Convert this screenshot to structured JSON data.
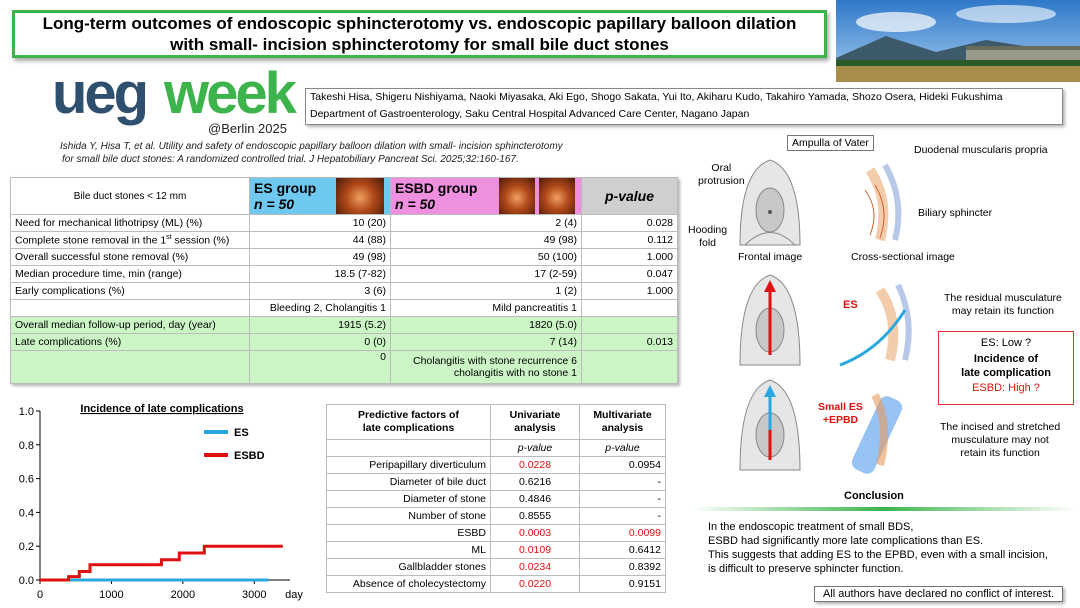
{
  "title": {
    "line1": "Long-term outcomes of endoscopic sphincterotomy vs. endoscopic papillary balloon dilation",
    "line2": "with small- incision sphincterotomy for small bile duct stones"
  },
  "logo": {
    "ueg": "ueg",
    "week": "week",
    "city": "@Berlin 2025"
  },
  "authors": {
    "names": "Takeshi Hisa, Shigeru Nishiyama, Naoki Miyasaka, Aki Ego, Shogo Sakata, Yui Ito, Akiharu Kudo, Takahiro Yamada, Shozo Osera, Hideki Fukushima",
    "affiliation": "Department of Gastroenterology, Saku Central Hospital Advanced Care Center, Nagano Japan"
  },
  "citation": {
    "line1": "Ishida Y, Hisa T, et al. Utility and safety of endoscopic papillary balloon dilation with small- incision sphincterotomy",
    "line2": "for small bile duct stones: A randomized controlled trial. J Hepatobiliary Pancreat Sci. 2025;32:160-167."
  },
  "main_table": {
    "header": {
      "label": "Bile duct stones < 12 mm",
      "es_group": "ES group",
      "es_n": "n = 50",
      "esbd_group": "ESBD group",
      "esbd_n": "n = 50",
      "p": "p-value"
    },
    "rows": [
      {
        "label": "Need for mechanical lithotripsy (ML) (%)",
        "es": "10 (20)",
        "esbd": "2 (4)",
        "p": "0.028"
      },
      {
        "label_pre": "Complete stone removal in the 1",
        "label_sup": "st",
        "label_post": " session (%)",
        "es": "44 (88)",
        "esbd": "49 (98)",
        "p": "0.112"
      },
      {
        "label": "Overall successful stone removal (%)",
        "es": "49 (98)",
        "esbd": "50 (100)",
        "p": "1.000"
      },
      {
        "label": "Median procedure time, min (range)",
        "es": "18.5 (7-82)",
        "esbd": "17 (2-59)",
        "p": "0.047"
      },
      {
        "label": "Early complications (%)",
        "es": "3 (6)",
        "esbd": "1 (2)",
        "p": "1.000"
      },
      {
        "label": "",
        "es": "Bleeding  2, Cholangitis 1",
        "esbd": "Mild pancreatitis 1",
        "p": ""
      },
      {
        "label": "Overall median follow-up period, day (year)",
        "es": "1915 (5.2)",
        "esbd": "1820 (5.0)",
        "p": ""
      },
      {
        "label": "Late complications (%)",
        "es": "0 (0)",
        "esbd": "7 (14)",
        "p": "0.013"
      },
      {
        "label": "",
        "es": "0",
        "esbd": "Cholangitis with stone recurrence 6",
        "esbd2": "cholangitis with no stone 1",
        "p": ""
      }
    ]
  },
  "chart_data": {
    "type": "line",
    "title": "Incidence of late complications",
    "xlabel": "day",
    "ylabel": "",
    "xlim": [
      0,
      3500
    ],
    "ylim": [
      0,
      1.0
    ],
    "xticks": [
      "0",
      "1000",
      "2000",
      "3000"
    ],
    "yticks": [
      "0.0",
      "0.2",
      "0.4",
      "0.6",
      "0.8",
      "1.0"
    ],
    "legend_position": "top-right",
    "series": [
      {
        "name": "ES",
        "color": "#29a8e0",
        "x": [
          0,
          3200
        ],
        "y": [
          0,
          0
        ]
      },
      {
        "name": "ESBD",
        "color": "#e01010",
        "x": [
          0,
          400,
          400,
          550,
          550,
          700,
          700,
          1700,
          1700,
          1950,
          1950,
          2300,
          2300,
          3400
        ],
        "y": [
          0,
          0,
          0.02,
          0.02,
          0.05,
          0.05,
          0.09,
          0.09,
          0.12,
          0.12,
          0.16,
          0.16,
          0.2,
          0.2
        ]
      }
    ]
  },
  "pred_table": {
    "header": {
      "factor1": "Predictive factors of",
      "factor2": "late complications",
      "uni1": "Univariate",
      "uni2": "analysis",
      "multi1": "Multivariate",
      "multi2": "analysis",
      "p_uni": "p-value",
      "p_multi": "p-value"
    },
    "rows": [
      {
        "label": "Peripapillary diverticulum",
        "uni": "0.0228",
        "uni_red": true,
        "multi": "0.0954",
        "multi_red": false
      },
      {
        "label": "Diameter of bile duct",
        "uni": "0.6216",
        "uni_red": false,
        "multi": "-",
        "multi_red": false
      },
      {
        "label": "Diameter of stone",
        "uni": "0.4846",
        "uni_red": false,
        "multi": "-",
        "multi_red": false
      },
      {
        "label": "Number of stone",
        "uni": "0.8555",
        "uni_red": false,
        "multi": "-",
        "multi_red": false
      },
      {
        "label": "ESBD",
        "uni": "0.0003",
        "uni_red": true,
        "multi": "0.0099",
        "multi_red": true
      },
      {
        "label": "ML",
        "uni": "0.0109",
        "uni_red": true,
        "multi": "0.6412",
        "multi_red": false
      },
      {
        "label": "Gallbladder stones",
        "uni": "0.0234",
        "uni_red": true,
        "multi": "0.8392",
        "multi_red": false
      },
      {
        "label": "Absence of  cholecystectomy",
        "uni": "0.0220",
        "uni_red": true,
        "multi": "0.9151",
        "multi_red": false
      }
    ]
  },
  "diagram": {
    "ampulla": "Ampulla of Vater",
    "oral1": "Oral",
    "oral2": "protrusion",
    "hooding1": "Hooding",
    "hooding2": "fold",
    "duodenal": "Duodenal muscularis propria",
    "biliary": "Biliary sphincter",
    "frontal": "Frontal image",
    "cross": "Cross-sectional image",
    "es_label": "ES",
    "small_es1": "Small ES",
    "small_es2": "+EPBD",
    "residual1": "The residual musculature",
    "residual2": "may retain its function",
    "incised1": "The incised and stretched",
    "incised2": "musculature may not",
    "incised3": "retain its function",
    "box_es": "ES: Low ?",
    "box_title1": "Incidence of",
    "box_title2": "late complication",
    "box_esbd": "ESBD: High ?"
  },
  "conclusion": {
    "title": "Conclusion",
    "line1": "In the endoscopic treatment of small BDS,",
    "line2": "ESBD had significantly more late complications than ES.",
    "line3": "This suggests that adding ES to the EPBD, even with a small incision,",
    "line4": "is difficult to preserve sphincter function."
  },
  "coi": "All authors have declared no conflict of interest.",
  "colors": {
    "green": "#3cb44b",
    "es_blue": "#6fc8f0",
    "esbd_pink": "#ef8fe0",
    "red": "#e01010"
  }
}
